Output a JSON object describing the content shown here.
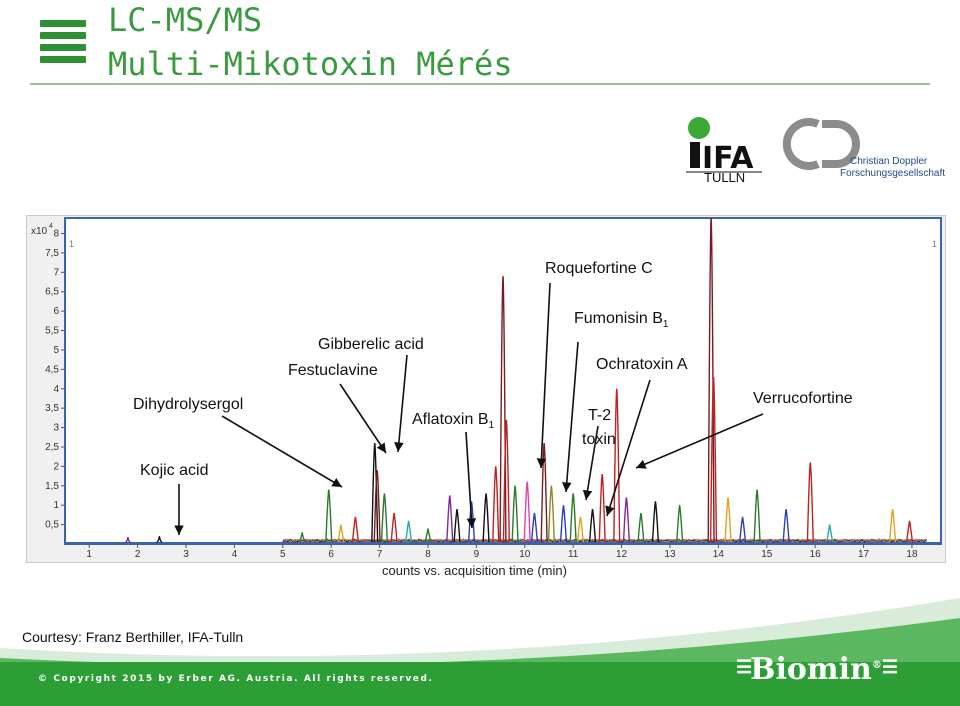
{
  "header": {
    "title_line1": "LC-MS/MS",
    "title_line2": "Multi-Mikotoxin Mérés"
  },
  "logos": {
    "ifa_text": "IFA",
    "ifa_sub": "TULLN",
    "cd_line1": "Christian Doppler",
    "cd_line2": "Forschungsgesellschaft",
    "biomin": "Biomin",
    "biomin_mark": "®"
  },
  "chart_data": {
    "type": "line",
    "y_multiplier_label": "x10",
    "y_multiplier_exp": "4",
    "corner_label_left": "1",
    "corner_label_right": "1",
    "x_ticks": [
      "1",
      "2",
      "3",
      "4",
      "5",
      "6",
      "7",
      "8",
      "9",
      "10",
      "11",
      "12",
      "13",
      "14",
      "15",
      "16",
      "17",
      "18"
    ],
    "y_ticks": [
      "8",
      "7,5",
      "7",
      "6,5",
      "6",
      "5,5",
      "5",
      "4,5",
      "4",
      "3,5",
      "3",
      "2,5",
      "2",
      "1,5",
      "1",
      "0,5"
    ],
    "xlim": [
      0.5,
      18.6
    ],
    "ylim": [
      0,
      8.4
    ],
    "xlabel": "counts vs. acquisition time (min)",
    "series_colors": [
      "#7a1c1c",
      "#c02222",
      "#2b7a2b",
      "#2a3fb5",
      "#7b2d8e",
      "#2aa7a7",
      "#e0a020",
      "#e040b0",
      "#111111",
      "#8a8a2a"
    ],
    "peaks": [
      {
        "x": 2.45,
        "y": 0.2,
        "c": 8
      },
      {
        "x": 1.8,
        "y": 0.18,
        "c": 4
      },
      {
        "x": 5.4,
        "y": 0.3,
        "c": 2
      },
      {
        "x": 5.95,
        "y": 1.4,
        "c": 2
      },
      {
        "x": 6.2,
        "y": 0.5,
        "c": 6
      },
      {
        "x": 6.5,
        "y": 0.7,
        "c": 1
      },
      {
        "x": 6.9,
        "y": 2.6,
        "c": 8
      },
      {
        "x": 6.95,
        "y": 1.9,
        "c": 0
      },
      {
        "x": 7.1,
        "y": 1.3,
        "c": 2
      },
      {
        "x": 7.3,
        "y": 0.8,
        "c": 1
      },
      {
        "x": 7.6,
        "y": 0.6,
        "c": 5
      },
      {
        "x": 8.0,
        "y": 0.4,
        "c": 2
      },
      {
        "x": 8.45,
        "y": 1.25,
        "c": 4
      },
      {
        "x": 8.6,
        "y": 0.9,
        "c": 8
      },
      {
        "x": 8.9,
        "y": 1.1,
        "c": 3
      },
      {
        "x": 9.2,
        "y": 1.3,
        "c": 8
      },
      {
        "x": 9.4,
        "y": 2.0,
        "c": 1
      },
      {
        "x": 9.55,
        "y": 6.9,
        "c": 0
      },
      {
        "x": 9.62,
        "y": 3.2,
        "c": 1
      },
      {
        "x": 9.8,
        "y": 1.5,
        "c": 2
      },
      {
        "x": 10.05,
        "y": 1.6,
        "c": 7
      },
      {
        "x": 10.2,
        "y": 0.8,
        "c": 3
      },
      {
        "x": 10.4,
        "y": 2.6,
        "c": 0
      },
      {
        "x": 10.55,
        "y": 1.5,
        "c": 9
      },
      {
        "x": 10.8,
        "y": 1.0,
        "c": 3
      },
      {
        "x": 11.0,
        "y": 1.3,
        "c": 2
      },
      {
        "x": 11.15,
        "y": 0.7,
        "c": 6
      },
      {
        "x": 11.4,
        "y": 0.9,
        "c": 8
      },
      {
        "x": 11.6,
        "y": 1.8,
        "c": 1
      },
      {
        "x": 11.9,
        "y": 4.0,
        "c": 1
      },
      {
        "x": 12.1,
        "y": 1.2,
        "c": 4
      },
      {
        "x": 12.4,
        "y": 0.8,
        "c": 2
      },
      {
        "x": 12.7,
        "y": 1.1,
        "c": 8
      },
      {
        "x": 13.2,
        "y": 1.0,
        "c": 2
      },
      {
        "x": 13.85,
        "y": 8.4,
        "c": 0
      },
      {
        "x": 13.9,
        "y": 4.3,
        "c": 1
      },
      {
        "x": 14.2,
        "y": 1.2,
        "c": 6
      },
      {
        "x": 14.5,
        "y": 0.7,
        "c": 3
      },
      {
        "x": 14.8,
        "y": 1.4,
        "c": 2
      },
      {
        "x": 15.4,
        "y": 0.9,
        "c": 3
      },
      {
        "x": 15.9,
        "y": 2.1,
        "c": 1
      },
      {
        "x": 16.3,
        "y": 0.5,
        "c": 5
      },
      {
        "x": 17.6,
        "y": 0.9,
        "c": 6
      },
      {
        "x": 17.95,
        "y": 0.6,
        "c": 1
      }
    ]
  },
  "annotations": {
    "dihydrolysergol": "Dihydrolysergol",
    "kojic_acid": "Kojic acid",
    "gibberelic_acid": "Gibberelic acid",
    "festuclavine": "Festuclavine",
    "aflatoxin": "Aflatoxin B",
    "aflatoxin_sub": "1",
    "roquefortine": "Roquefortine C",
    "fumonisin": "Fumonisin B",
    "fumonisin_sub": "1",
    "ochratoxin": "Ochratoxin A",
    "t2_line1": "T-2",
    "t2_line2": "toxin",
    "verrucofortine": "Verrucofortine"
  },
  "footer": {
    "courtesy": "Courtesy: Franz Berthiller, IFA-Tulln",
    "copyright": "© Copyright 2015 by Erber AG. Austria. All rights reserved."
  }
}
